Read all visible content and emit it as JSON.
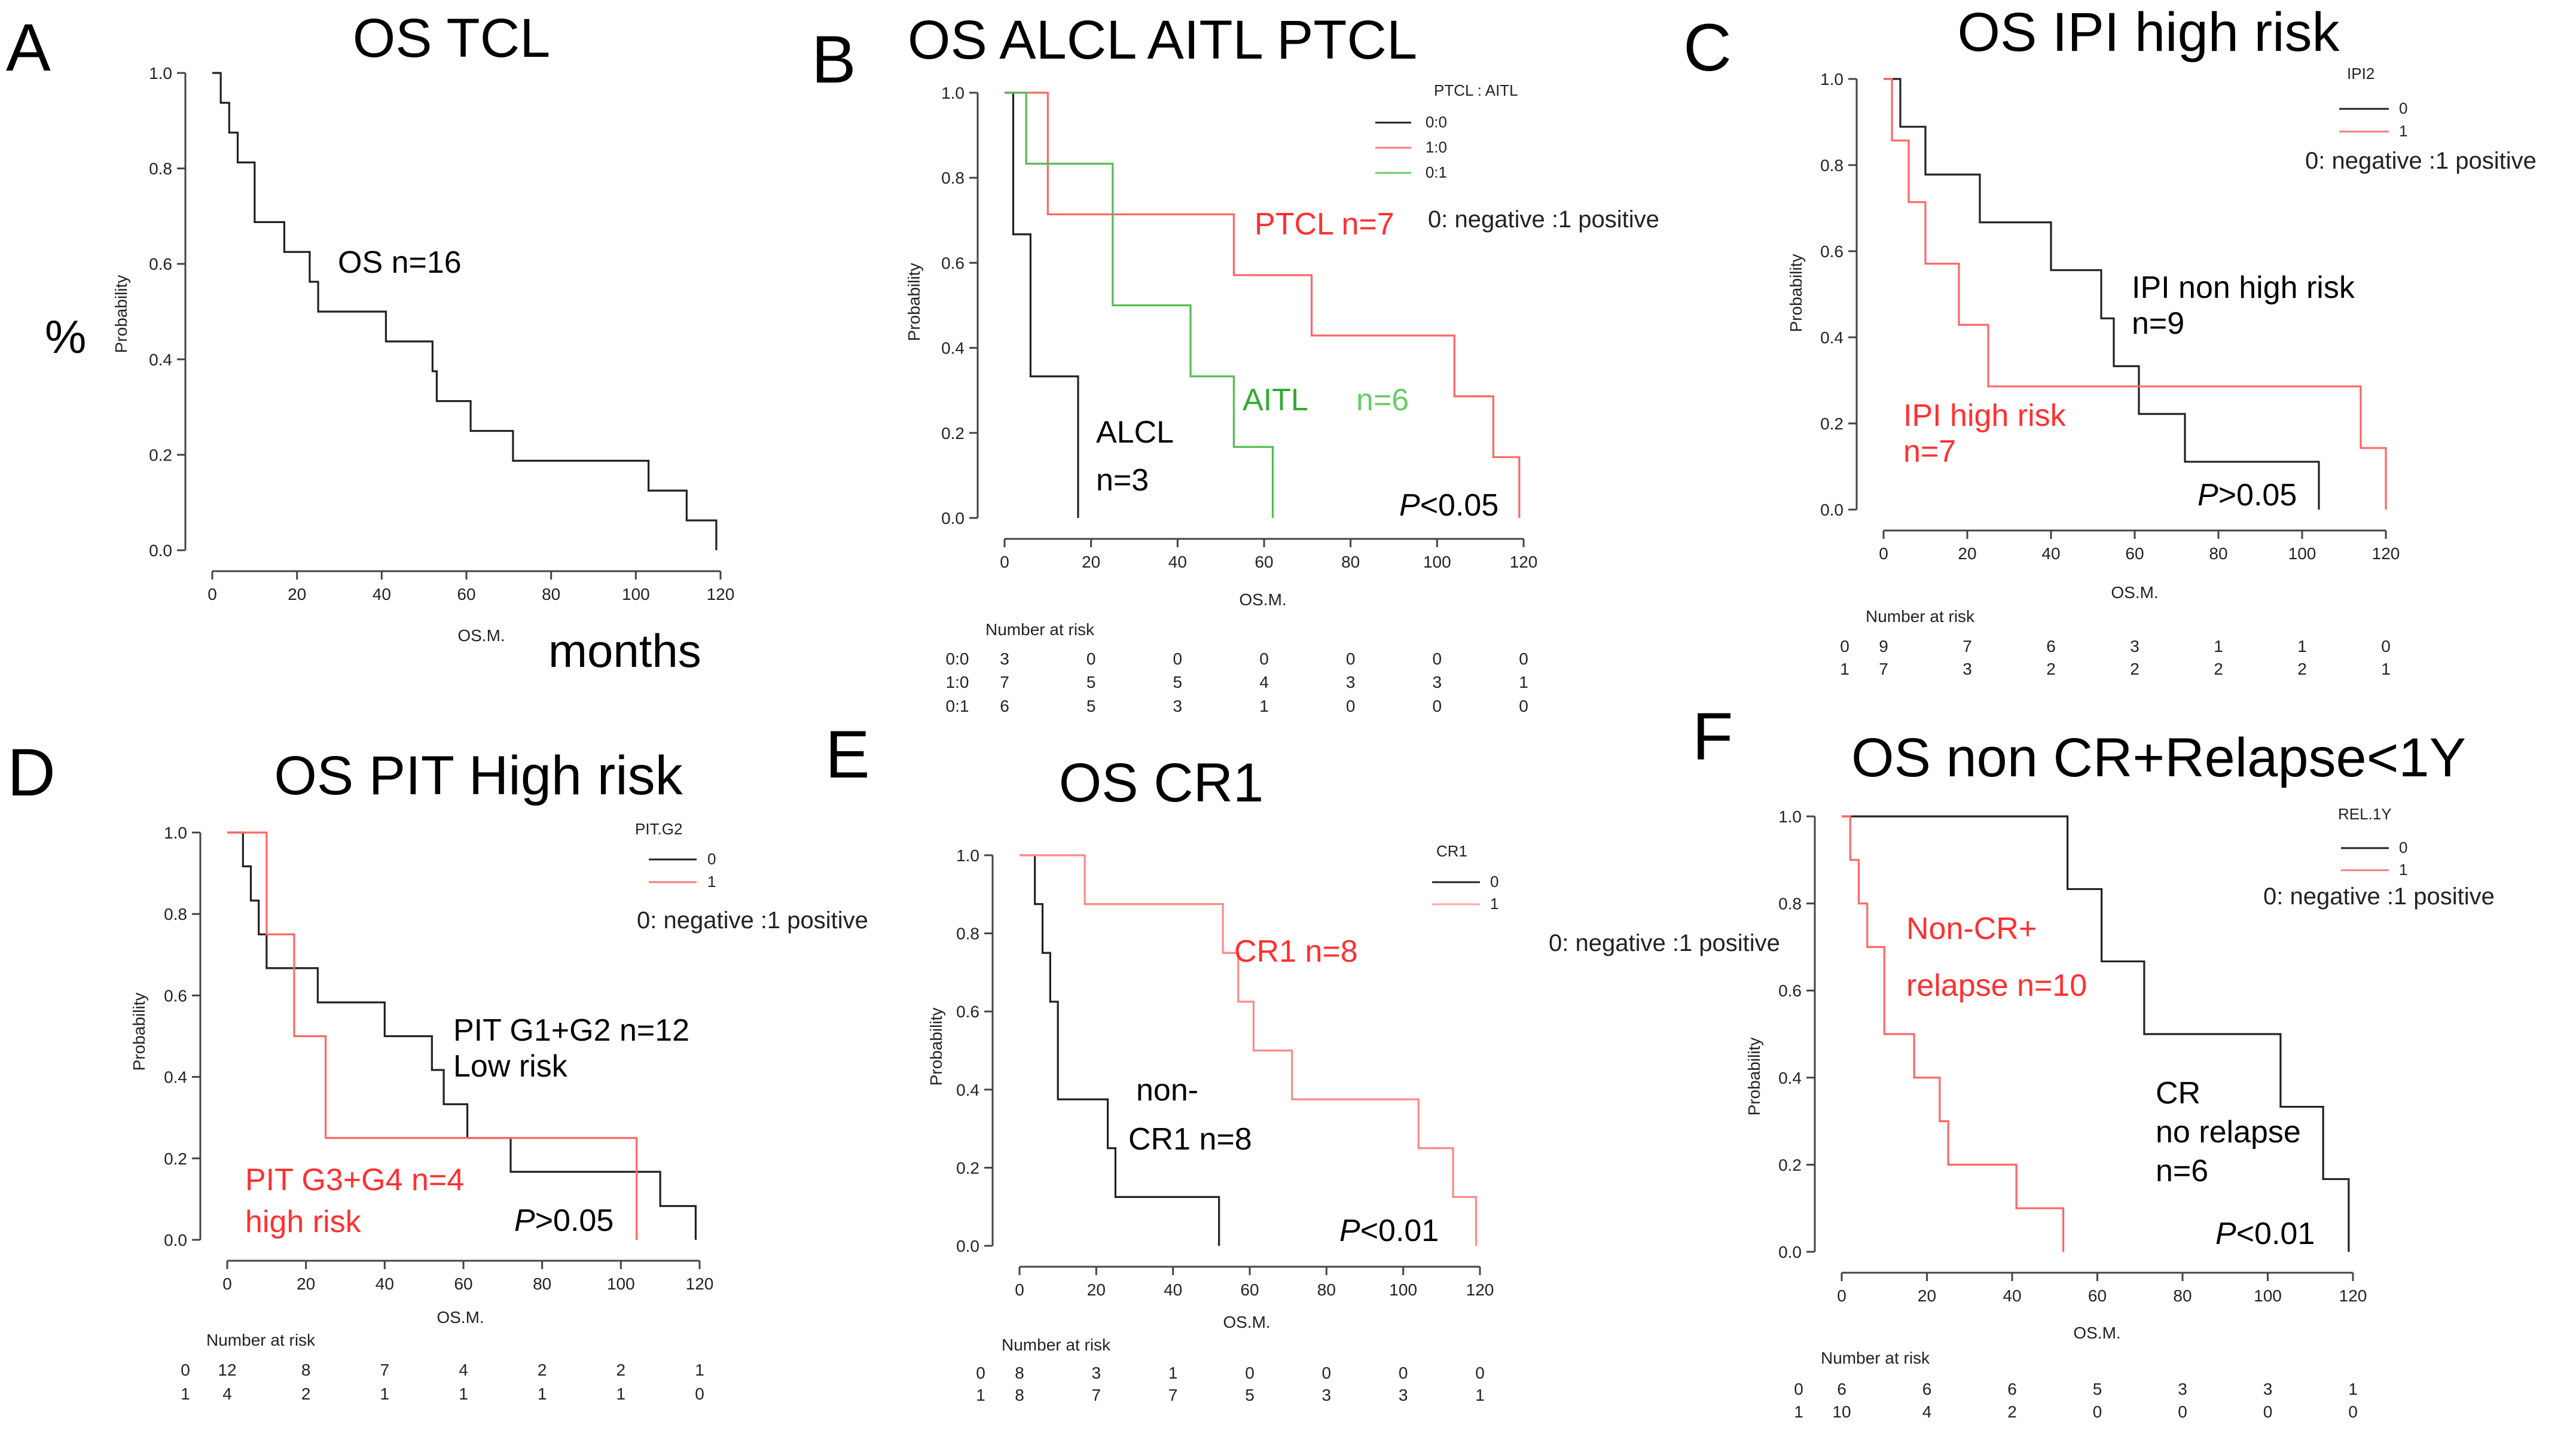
{
  "figure": {
    "colors": {
      "black": "#222222",
      "red": "#ff3030",
      "green": "#33aa33",
      "pink": "#ffaaaa"
    }
  },
  "chart_data": [
    {
      "id": "A",
      "letter": "A",
      "type": "line",
      "title": "OS TCL",
      "xlabel": "OS.M.",
      "ylabel": "Probability",
      "xlim": [
        0,
        120
      ],
      "ylim": [
        0,
        1
      ],
      "xticks": [
        0,
        20,
        40,
        60,
        80,
        100,
        120
      ],
      "yticks": [
        "0.0",
        "0.2",
        "0.4",
        "0.6",
        "0.8",
        "1.0"
      ],
      "series": [
        {
          "name": "OS",
          "color": "#222222",
          "times": [
            2,
            4,
            6,
            8,
            10,
            17,
            23,
            25,
            41,
            50,
            52,
            53,
            61,
            71,
            103,
            112,
            119
          ],
          "surv": [
            0.9375,
            0.875,
            0.8125,
            0.8125,
            0.6875,
            0.625,
            0.5625,
            0.5,
            0.4375,
            0.4375,
            0.375,
            0.3125,
            0.25,
            0.1875,
            0.125,
            0.0625,
            0
          ]
        }
      ],
      "annotations": [
        {
          "text": "OS n=16",
          "color": "#000000"
        }
      ],
      "extra_texts": [
        {
          "text": "%"
        },
        {
          "text": "months"
        }
      ]
    },
    {
      "id": "B",
      "letter": "B",
      "type": "line",
      "title": "OS ALCL AITL PTCL",
      "xlabel": "OS.M.",
      "ylabel": "Probability",
      "xlim": [
        0,
        120
      ],
      "ylim": [
        0,
        1
      ],
      "xticks": [
        0,
        20,
        40,
        60,
        80,
        100,
        120
      ],
      "yticks": [
        "0.0",
        "0.2",
        "0.4",
        "0.6",
        "0.8",
        "1.0"
      ],
      "legend": {
        "title": "PTCL : AITL",
        "entries": [
          {
            "label": "0:0",
            "color": "#222222"
          },
          {
            "label": "1:0",
            "color": "#ff7777"
          },
          {
            "label": "0:1",
            "color": "#66cc66"
          }
        ]
      },
      "series": [
        {
          "name": "0:0",
          "color": "#222222",
          "times": [
            2,
            6,
            17
          ],
          "surv": [
            0.667,
            0.333,
            0
          ]
        },
        {
          "name": "1:0",
          "color": "#ff6666",
          "times": [
            10,
            53,
            71,
            104,
            113,
            119
          ],
          "surv": [
            0.714,
            0.571,
            0.429,
            0.286,
            0.143,
            0
          ]
        },
        {
          "name": "0:1",
          "color": "#55bb55",
          "times": [
            5,
            25,
            43,
            53,
            62
          ],
          "surv": [
            0.833,
            0.5,
            0.333,
            0.167,
            0
          ]
        }
      ],
      "annotations": [
        {
          "text": "PTCL n=7",
          "color": "#ff3030"
        },
        {
          "text": "AITL",
          "color": "#33aa33"
        },
        {
          "text": "n=6",
          "color": "#66cc66"
        },
        {
          "text": "ALCL",
          "color": "#000000"
        },
        {
          "text": "n=3",
          "color": "#000000"
        },
        {
          "text": "0: negative :1 positive",
          "color": "#222222"
        }
      ],
      "pvalue": {
        "p": "P",
        "rest": "<0.05"
      },
      "risk_table": {
        "header": "Number at risk",
        "rows": [
          {
            "label": "0:0",
            "values": [
              "3",
              "0",
              "0",
              "0",
              "0",
              "0",
              "0"
            ]
          },
          {
            "label": "1:0",
            "values": [
              "7",
              "5",
              "5",
              "4",
              "3",
              "3",
              "1"
            ]
          },
          {
            "label": "0:1",
            "values": [
              "6",
              "5",
              "3",
              "1",
              "0",
              "0",
              "0"
            ]
          }
        ]
      }
    },
    {
      "id": "C",
      "letter": "C",
      "type": "line",
      "title": "OS IPI high risk",
      "xlabel": "OS.M.",
      "ylabel": "Probability",
      "xlim": [
        0,
        120
      ],
      "ylim": [
        0,
        1
      ],
      "xticks": [
        0,
        20,
        40,
        60,
        80,
        100,
        120
      ],
      "yticks": [
        "0.0",
        "0.2",
        "0.4",
        "0.6",
        "0.8",
        "1.0"
      ],
      "legend": {
        "title": "IPI2",
        "entries": [
          {
            "label": "0",
            "color": "#222222"
          },
          {
            "label": "1",
            "color": "#ff7777"
          }
        ]
      },
      "series": [
        {
          "name": "0",
          "color": "#222222",
          "times": [
            4,
            10,
            23,
            40,
            52,
            55,
            61,
            72,
            104
          ],
          "surv": [
            0.889,
            0.778,
            0.667,
            0.556,
            0.444,
            0.333,
            0.222,
            0.111,
            0
          ]
        },
        {
          "name": "1",
          "color": "#ff6666",
          "times": [
            2,
            6,
            10,
            18,
            25,
            114,
            120
          ],
          "surv": [
            0.857,
            0.714,
            0.571,
            0.429,
            0.286,
            0.143,
            0
          ]
        }
      ],
      "annotations": [
        {
          "text": "IPI non high risk",
          "color": "#000000"
        },
        {
          "text": "n=9",
          "color": "#000000"
        },
        {
          "text": "IPI high risk",
          "color": "#ff3030"
        },
        {
          "text": "n=7",
          "color": "#ff3030"
        },
        {
          "text": "0: negative :1 positive",
          "color": "#222222"
        }
      ],
      "pvalue": {
        "p": "P",
        "rest": ">0.05"
      },
      "risk_table": {
        "header": "Number at risk",
        "rows": [
          {
            "label": "0",
            "values": [
              "9",
              "7",
              "6",
              "3",
              "1",
              "1",
              "0"
            ]
          },
          {
            "label": "1",
            "values": [
              "7",
              "3",
              "2",
              "2",
              "2",
              "2",
              "1"
            ]
          }
        ]
      }
    },
    {
      "id": "D",
      "letter": "D",
      "type": "line",
      "title": "OS PIT  High risk",
      "xlabel": "OS.M.",
      "ylabel": "Probability",
      "xlim": [
        0,
        120
      ],
      "ylim": [
        0,
        1
      ],
      "xticks": [
        0,
        20,
        40,
        60,
        80,
        100,
        120
      ],
      "yticks": [
        "0.0",
        "0.2",
        "0.4",
        "0.6",
        "0.8",
        "1.0"
      ],
      "legend": {
        "title": "PIT.G2",
        "entries": [
          {
            "label": "0",
            "color": "#222222"
          },
          {
            "label": "1",
            "color": "#ff7777"
          }
        ]
      },
      "series": [
        {
          "name": "0",
          "color": "#222222",
          "times": [
            4,
            6,
            8,
            10,
            23,
            40,
            52,
            55,
            61,
            72,
            110,
            119
          ],
          "surv": [
            0.917,
            0.833,
            0.75,
            0.667,
            0.583,
            0.5,
            0.417,
            0.333,
            0.25,
            0.167,
            0.083,
            0
          ]
        },
        {
          "name": "1",
          "color": "#ff6666",
          "times": [
            10,
            17,
            25,
            104
          ],
          "surv": [
            0.75,
            0.5,
            0.25,
            0
          ]
        }
      ],
      "annotations": [
        {
          "text": "PIT G1+G2 n=12",
          "color": "#000000"
        },
        {
          "text": "Low risk",
          "color": "#000000"
        },
        {
          "text": "PIT G3+G4 n=4",
          "color": "#ff3030"
        },
        {
          "text": "high risk",
          "color": "#ff3030"
        },
        {
          "text": "0: negative :1 positive",
          "color": "#222222"
        }
      ],
      "pvalue": {
        "p": "P",
        "rest": ">0.05"
      },
      "risk_table": {
        "header": "Number at risk",
        "rows": [
          {
            "label": "0",
            "values": [
              "12",
              "8",
              "7",
              "4",
              "2",
              "2",
              "1"
            ]
          },
          {
            "label": "1",
            "values": [
              "4",
              "2",
              "1",
              "1",
              "1",
              "1",
              "0"
            ]
          }
        ]
      }
    },
    {
      "id": "E",
      "letter": "E",
      "type": "line",
      "title": "OS CR1",
      "xlabel": "OS.M.",
      "ylabel": "Probability",
      "xlim": [
        0,
        120
      ],
      "ylim": [
        0,
        1
      ],
      "xticks": [
        0,
        20,
        40,
        60,
        80,
        100,
        120
      ],
      "yticks": [
        "0.0",
        "0.2",
        "0.4",
        "0.6",
        "0.8",
        "1.0"
      ],
      "legend": {
        "title": "CR1",
        "entries": [
          {
            "label": "0",
            "color": "#222222"
          },
          {
            "label": "1",
            "color": "#ffaaaa"
          }
        ]
      },
      "series": [
        {
          "name": "0",
          "color": "#222222",
          "times": [
            4,
            6,
            8,
            10,
            23,
            25,
            52
          ],
          "surv": [
            0.875,
            0.75,
            0.625,
            0.375,
            0.25,
            0.125,
            0
          ]
        },
        {
          "name": "1",
          "color": "#ff8888",
          "times": [
            17,
            53,
            57,
            61,
            71,
            104,
            113,
            119
          ],
          "surv": [
            0.875,
            0.75,
            0.625,
            0.5,
            0.375,
            0.25,
            0.125,
            0
          ]
        }
      ],
      "annotations": [
        {
          "text": "CR1 n=8",
          "color": "#ff3030"
        },
        {
          "text": "non-",
          "color": "#000000"
        },
        {
          "text": "CR1 n=8",
          "color": "#000000"
        },
        {
          "text": "0: negative :1 positive",
          "color": "#222222"
        }
      ],
      "pvalue": {
        "p": "P",
        "rest": "<0.01"
      },
      "risk_table": {
        "header": "Number at risk",
        "rows": [
          {
            "label": "0",
            "values": [
              "8",
              "3",
              "1",
              "0",
              "0",
              "0",
              "0"
            ]
          },
          {
            "label": "1",
            "values": [
              "8",
              "7",
              "7",
              "5",
              "3",
              "3",
              "1"
            ]
          }
        ]
      }
    },
    {
      "id": "F",
      "letter": "F",
      "type": "line",
      "title": "OS non CR+Relapse<1Y",
      "xlabel": "OS.M.",
      "ylabel": "Probability",
      "xlim": [
        0,
        120
      ],
      "ylim": [
        0,
        1
      ],
      "xticks": [
        0,
        20,
        40,
        60,
        80,
        100,
        120
      ],
      "yticks": [
        "0.0",
        "0.2",
        "0.4",
        "0.6",
        "0.8",
        "1.0"
      ],
      "legend": {
        "title": "REL.1Y",
        "entries": [
          {
            "label": "0",
            "color": "#222222"
          },
          {
            "label": "1",
            "color": "#ff7777"
          }
        ]
      },
      "series": [
        {
          "name": "0",
          "color": "#222222",
          "times": [
            53,
            61,
            71,
            103,
            113,
            119
          ],
          "surv": [
            0.833,
            0.667,
            0.5,
            0.333,
            0.167,
            0
          ]
        },
        {
          "name": "1",
          "color": "#ff6666",
          "times": [
            2,
            4,
            6,
            10,
            17,
            23,
            25,
            41,
            52
          ],
          "surv": [
            0.9,
            0.8,
            0.7,
            0.5,
            0.4,
            0.3,
            0.2,
            0.1,
            0
          ]
        }
      ],
      "annotations": [
        {
          "text": "Non-CR+",
          "color": "#ff3030"
        },
        {
          "text": "relapse n=10",
          "color": "#ff3030"
        },
        {
          "text": "CR",
          "color": "#000000"
        },
        {
          "text": "no relapse",
          "color": "#000000"
        },
        {
          "text": "n=6",
          "color": "#000000"
        },
        {
          "text": "0: negative :1 positive",
          "color": "#222222"
        }
      ],
      "pvalue": {
        "p": "P",
        "rest": "<0.01"
      },
      "risk_table": {
        "header": "Number at risk",
        "rows": [
          {
            "label": "0",
            "values": [
              "6",
              "6",
              "6",
              "5",
              "3",
              "3",
              "1"
            ]
          },
          {
            "label": "1",
            "values": [
              "10",
              "4",
              "2",
              "0",
              "0",
              "0",
              "0"
            ]
          }
        ]
      }
    }
  ]
}
